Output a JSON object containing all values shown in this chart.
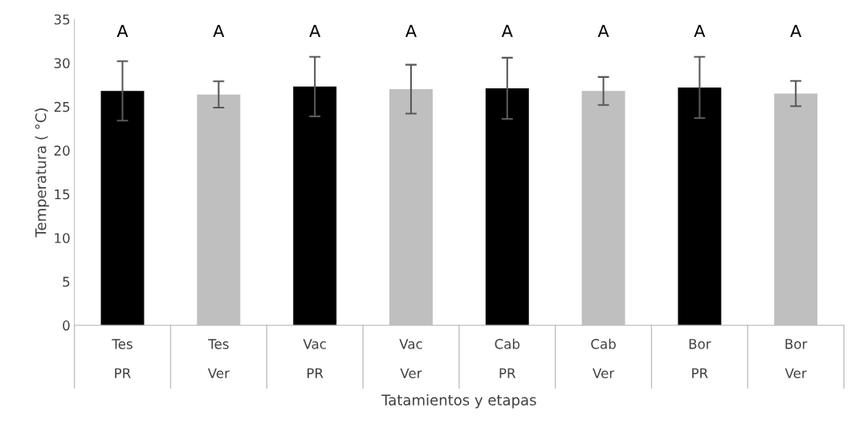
{
  "chart_data": {
    "type": "bar",
    "xlabel": "Tatamientos y etapas",
    "ylabel": "Temperatura ( °C)",
    "categories": [
      "Tes\nPR",
      "Tes\nVer",
      "Vac\nPR",
      "Vac\nVer",
      "Cab\nPR",
      "Cab\nVer",
      "Bor\nPR",
      "Bor\nVer"
    ],
    "values": [
      26.8,
      26.4,
      27.3,
      27.0,
      27.1,
      26.8,
      27.2,
      26.5
    ],
    "errors": [
      3.4,
      1.5,
      3.4,
      2.8,
      3.5,
      1.6,
      3.5,
      1.45
    ],
    "colors": [
      "#000000",
      "#bfbfbf",
      "#000000",
      "#bfbfbf",
      "#000000",
      "#bfbfbf",
      "#000000",
      "#bfbfbf"
    ],
    "ylim": [
      0,
      35
    ],
    "yticks": [
      0,
      5,
      10,
      15,
      20,
      25,
      30,
      35
    ],
    "annotations": [
      "A",
      "A",
      "A",
      "A",
      "A",
      "A",
      "A",
      "A"
    ],
    "grid": false
  }
}
